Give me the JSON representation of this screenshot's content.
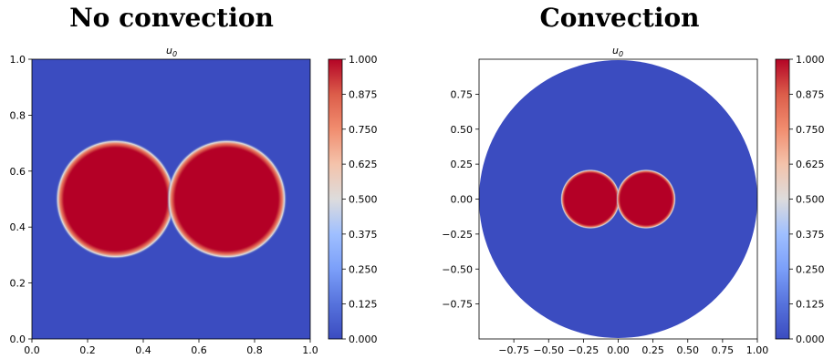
{
  "panels": [
    {
      "title": "No convection",
      "subplot_label": "u",
      "subplot_sub": "0"
    },
    {
      "title": "Convection",
      "subplot_label": "u",
      "subplot_sub": "0"
    }
  ],
  "chart_data": [
    {
      "type": "heatmap",
      "title": "u0",
      "xlim": [
        0.0,
        1.0
      ],
      "ylim": [
        0.0,
        1.0
      ],
      "xticks": [
        "0.0",
        "0.2",
        "0.4",
        "0.6",
        "0.8",
        "1.0"
      ],
      "yticks": [
        "0.0",
        "0.2",
        "0.4",
        "0.6",
        "0.8",
        "1.0"
      ],
      "domain": "unit-square",
      "blobs": [
        {
          "cx": 0.3,
          "cy": 0.5,
          "r": 0.2
        },
        {
          "cx": 0.7,
          "cy": 0.5,
          "r": 0.2
        }
      ],
      "value_inside": 1.0,
      "value_outside": 0.0,
      "colormap": "coolwarm",
      "colorbar_ticks": [
        "0.000",
        "0.125",
        "0.250",
        "0.375",
        "0.500",
        "0.625",
        "0.750",
        "0.875",
        "1.000"
      ],
      "colorbar_range": [
        0.0,
        1.0
      ]
    },
    {
      "type": "heatmap",
      "title": "u0",
      "xlim": [
        -1.0,
        1.0
      ],
      "ylim": [
        -1.0,
        1.0
      ],
      "xticks": [
        "−0.75",
        "−0.50",
        "−0.25",
        "0.00",
        "0.25",
        "0.50",
        "0.75",
        "1.00"
      ],
      "yticks": [
        "−0.75",
        "−0.50",
        "−0.25",
        "0.00",
        "0.25",
        "0.50",
        "0.75"
      ],
      "domain": "unit-disk",
      "blobs": [
        {
          "cx": -0.2,
          "cy": 0.0,
          "r": 0.2
        },
        {
          "cx": 0.2,
          "cy": 0.0,
          "r": 0.2
        }
      ],
      "value_inside": 1.0,
      "value_outside": 0.0,
      "colormap": "coolwarm",
      "colorbar_ticks": [
        "0.000",
        "0.125",
        "0.250",
        "0.375",
        "0.500",
        "0.625",
        "0.750",
        "0.875",
        "1.000"
      ],
      "colorbar_range": [
        0.0,
        1.0
      ]
    }
  ],
  "colors": {
    "low": "#3b4cc0",
    "high": "#b40426"
  }
}
